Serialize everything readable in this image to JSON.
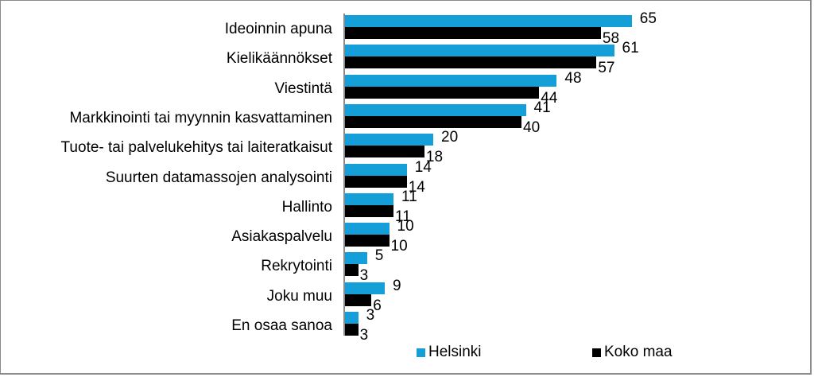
{
  "chart_data": {
    "type": "bar",
    "orientation": "horizontal",
    "title": "",
    "xlabel": "",
    "ylabel": "",
    "grid": false,
    "legend_position": "bottom",
    "categories": [
      "Ideoinnin apuna",
      "Kielikäännökset",
      "Viestintä",
      "Markkinointi tai myynnin kasvattaminen",
      "Tuote- tai palvelukehitys tai laiteratkaisut",
      "Suurten datamassojen analysointi",
      "Hallinto",
      "Asiakaspalvelu",
      "Rekrytointi",
      "Joku muu",
      "En osaa sanoa"
    ],
    "series": [
      {
        "name": "Helsinki",
        "color": "#159fd8",
        "values": [
          65,
          61,
          48,
          41,
          20,
          14,
          11,
          10,
          5,
          9,
          3
        ]
      },
      {
        "name": "Koko maa",
        "color": "#000000",
        "values": [
          58,
          57,
          44,
          40,
          18,
          14,
          11,
          10,
          3,
          6,
          3
        ]
      }
    ],
    "xlim": [
      0,
      70
    ]
  },
  "legend": {
    "items": [
      {
        "label": "Helsinki",
        "color": "#159fd8"
      },
      {
        "label": "Koko maa",
        "color": "#000000"
      }
    ]
  }
}
